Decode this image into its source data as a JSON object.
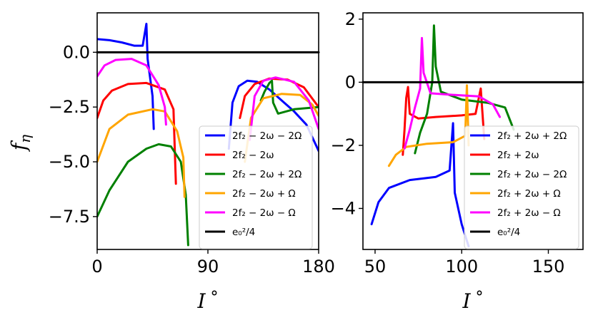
{
  "chart_data": [
    {
      "type": "line",
      "panel": "left",
      "xlabel": "I°",
      "ylabel": "f_η",
      "xlim": [
        0,
        180
      ],
      "ylim": [
        -9.0,
        1.8
      ],
      "xticks": [
        0,
        90,
        180
      ],
      "yticks": [
        0.0,
        -2.5,
        -5.0,
        -7.5
      ],
      "ytick_labels": [
        "0.0",
        "−2.5",
        "−5.0",
        "−7.5"
      ],
      "legend_position": "lower-right",
      "series": [
        {
          "name": "2f₂ − 2ω − 2Ω",
          "color": "#0000ff",
          "points": [
            [
              0,
              0.6
            ],
            [
              10,
              0.55
            ],
            [
              20,
              0.45
            ],
            [
              30,
              0.3
            ],
            [
              37,
              0.3
            ],
            [
              40,
              1.3
            ],
            [
              41,
              -0.3
            ],
            [
              45,
              -2.0
            ],
            [
              46,
              -3.5
            ]
          ],
          "points2": [
            [
              107,
              -4.4
            ],
            [
              110,
              -2.3
            ],
            [
              115,
              -1.55
            ],
            [
              122,
              -1.3
            ],
            [
              130,
              -1.35
            ],
            [
              140,
              -1.7
            ],
            [
              150,
              -2.2
            ],
            [
              160,
              -2.7
            ],
            [
              170,
              -3.3
            ],
            [
              180,
              -4.5
            ]
          ]
        },
        {
          "name": "2f₂ − 2ω",
          "color": "#ff0000",
          "points": [
            [
              0,
              -3.0
            ],
            [
              5,
              -2.2
            ],
            [
              12,
              -1.75
            ],
            [
              25,
              -1.45
            ],
            [
              40,
              -1.4
            ],
            [
              55,
              -1.7
            ],
            [
              62,
              -2.6
            ],
            [
              64,
              -6.0
            ]
          ],
          "points2": [
            [
              116,
              -3.0
            ],
            [
              120,
              -2.0
            ],
            [
              128,
              -1.45
            ],
            [
              140,
              -1.2
            ],
            [
              155,
              -1.25
            ],
            [
              168,
              -1.6
            ],
            [
              180,
              -2.5
            ]
          ]
        },
        {
          "name": "2f₂ − 2ω + 2Ω",
          "color": "#008000",
          "points": [
            [
              0,
              -7.5
            ],
            [
              10,
              -6.3
            ],
            [
              25,
              -5.0
            ],
            [
              40,
              -4.4
            ],
            [
              50,
              -4.2
            ],
            [
              60,
              -4.3
            ],
            [
              68,
              -5.0
            ],
            [
              72,
              -6.5
            ],
            [
              74,
              -8.8
            ]
          ],
          "points2": [
            [
              133,
              -2.2
            ],
            [
              136,
              -1.8
            ],
            [
              140,
              -1.4
            ],
            [
              142,
              -1.3
            ],
            [
              143,
              -2.3
            ],
            [
              147,
              -2.8
            ],
            [
              160,
              -2.6
            ],
            [
              180,
              -2.5
            ]
          ]
        },
        {
          "name": "2f₂ − 2ω + Ω",
          "color": "#ffa500",
          "points": [
            [
              0,
              -5.0
            ],
            [
              10,
              -3.5
            ],
            [
              25,
              -2.85
            ],
            [
              45,
              -2.6
            ],
            [
              55,
              -2.7
            ],
            [
              65,
              -3.6
            ],
            [
              70,
              -4.8
            ],
            [
              71,
              -6.6
            ]
          ],
          "points2": [
            [
              120,
              -5.0
            ],
            [
              125,
              -3.0
            ],
            [
              135,
              -2.1
            ],
            [
              150,
              -1.9
            ],
            [
              165,
              -1.95
            ],
            [
              175,
              -2.4
            ],
            [
              180,
              -2.9
            ]
          ]
        },
        {
          "name": "2f₂ − 2ω − Ω",
          "color": "#ff00ff",
          "points": [
            [
              0,
              -1.1
            ],
            [
              6,
              -0.6
            ],
            [
              15,
              -0.35
            ],
            [
              28,
              -0.3
            ],
            [
              40,
              -0.6
            ],
            [
              50,
              -1.5
            ],
            [
              55,
              -2.5
            ],
            [
              56,
              -3.3
            ]
          ],
          "points2": [
            [
              124,
              -4.0
            ],
            [
              128,
              -2.0
            ],
            [
              135,
              -1.3
            ],
            [
              145,
              -1.15
            ],
            [
              160,
              -1.35
            ],
            [
              172,
              -2.2
            ],
            [
              180,
              -3.5
            ]
          ]
        }
      ],
      "reference_line": {
        "name": "e₀²/4",
        "color": "#000000",
        "y": 0.0
      }
    },
    {
      "type": "line",
      "panel": "right",
      "xlabel": "I°",
      "ylabel": "",
      "xlim": [
        43,
        170
      ],
      "ylim": [
        -5.3,
        2.2
      ],
      "xticks": [
        50,
        100,
        150
      ],
      "yticks": [
        2,
        0,
        -2,
        -4
      ],
      "ytick_labels": [
        "2",
        "0",
        "−2",
        "−4"
      ],
      "legend_position": "lower-right",
      "series": [
        {
          "name": "2f₂ + 2ω + 2Ω",
          "color": "#0000ff",
          "points": [
            [
              48,
              -4.5
            ],
            [
              52,
              -3.8
            ],
            [
              58,
              -3.35
            ],
            [
              70,
              -3.1
            ],
            [
              85,
              -3.0
            ],
            [
              93,
              -2.8
            ],
            [
              95,
              -1.3
            ],
            [
              96,
              -3.5
            ],
            [
              100,
              -4.5
            ],
            [
              104,
              -5.2
            ]
          ]
        },
        {
          "name": "2f₂ + 2ω",
          "color": "#ff0000",
          "points": [
            [
              66,
              -2.3
            ],
            [
              67,
              -1.5
            ],
            [
              68,
              -0.5
            ],
            [
              69,
              -0.15
            ],
            [
              70,
              -1.0
            ],
            [
              75,
              -1.15
            ],
            [
              85,
              -1.1
            ],
            [
              100,
              -1.05
            ],
            [
              108,
              -1.0
            ],
            [
              111,
              -0.2
            ],
            [
              113,
              -1.8
            ]
          ]
        },
        {
          "name": "2f₂ + 2ω − 2Ω",
          "color": "#008000",
          "points": [
            [
              73,
              -2.25
            ],
            [
              76,
              -1.6
            ],
            [
              80,
              -1.0
            ],
            [
              83,
              0.0
            ],
            [
              84,
              1.8
            ],
            [
              85,
              0.5
            ],
            [
              88,
              -0.3
            ],
            [
              100,
              -0.55
            ],
            [
              115,
              -0.65
            ],
            [
              125,
              -0.8
            ],
            [
              130,
              -1.5
            ]
          ]
        },
        {
          "name": "2f₂ + 2ω + Ω",
          "color": "#ffa500",
          "points": [
            [
              58,
              -2.65
            ],
            [
              62,
              -2.3
            ],
            [
              68,
              -2.05
            ],
            [
              80,
              -1.95
            ],
            [
              95,
              -1.9
            ],
            [
              102,
              -1.7
            ],
            [
              103,
              -0.1
            ],
            [
              104,
              -2.0
            ]
          ]
        },
        {
          "name": "2f₂ + 2ω − Ω",
          "color": "#ff00ff",
          "points": [
            [
              67,
              -2.1
            ],
            [
              70,
              -1.5
            ],
            [
              73,
              -0.8
            ],
            [
              76,
              -0.2
            ],
            [
              77,
              1.4
            ],
            [
              78,
              0.3
            ],
            [
              82,
              -0.35
            ],
            [
              95,
              -0.4
            ],
            [
              110,
              -0.45
            ],
            [
              118,
              -0.7
            ],
            [
              122,
              -1.1
            ]
          ]
        }
      ],
      "reference_line": {
        "name": "e₀²/4",
        "color": "#000000",
        "y": 0.0
      }
    }
  ]
}
